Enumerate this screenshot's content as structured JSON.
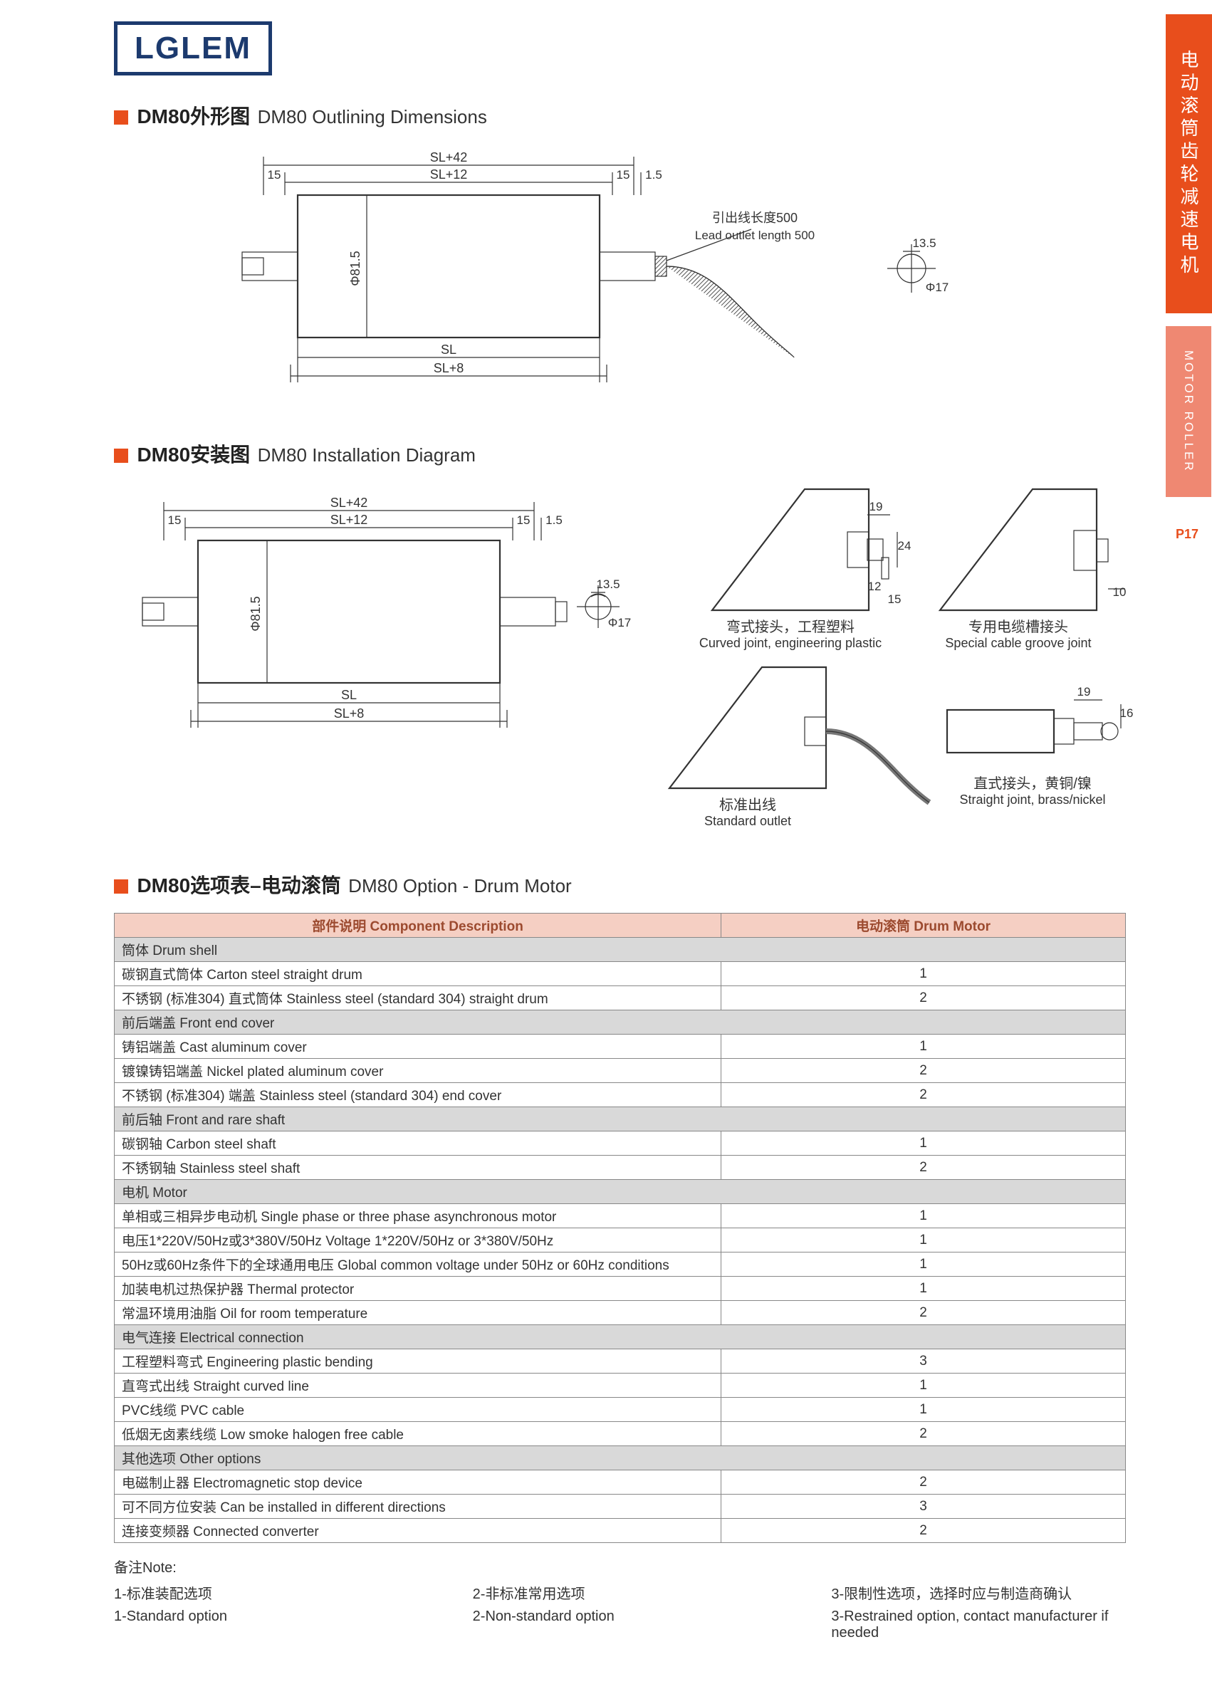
{
  "logo": "LGLEM",
  "side": {
    "tab1": "电动滚筒齿轮减速电机",
    "tab2": "MOTOR ROLLER",
    "page": "P17"
  },
  "sec1": {
    "zh": "DM80外形图",
    "en": "DM80 Outlining Dimensions",
    "dims": {
      "sl42": "SL+42",
      "sl12": "SL+12",
      "sl": "SL",
      "sl8": "SL+8",
      "d815": "Φ81.5",
      "l15a": "15",
      "l15b": "15",
      "l1_5": "1.5",
      "lead_zh": "引出线长度500",
      "lead_en": "Lead outlet length 500",
      "d17": "Φ17",
      "l13_5": "13.5"
    }
  },
  "sec2": {
    "zh": "DM80安装图",
    "en": "DM80 Installation Diagram",
    "dims": {
      "sl42": "SL+42",
      "sl12": "SL+12",
      "sl": "SL",
      "sl8": "SL+8",
      "d815": "Φ81.5",
      "l15a": "15",
      "l15b": "15",
      "l1_5": "1.5",
      "d17": "Φ17",
      "l13_5": "13.5",
      "j1_19": "19",
      "j1_24": "24",
      "j1_12": "12",
      "j1_15": "15",
      "j2_10": "10",
      "j4_19": "19",
      "j4_16": "16"
    },
    "captions": {
      "c1_zh": "弯式接头，工程塑料",
      "c1_en": "Curved joint, engineering plastic",
      "c2_zh": "专用电缆槽接头",
      "c2_en": "Special cable groove joint",
      "c3_zh": "标准出线",
      "c3_en": "Standard outlet",
      "c4_zh": "直式接头，黄铜/镍",
      "c4_en": "Straight joint, brass/nickel"
    }
  },
  "sec3": {
    "zh": "DM80选项表–电动滚筒",
    "en": "DM80 Option - Drum Motor",
    "header": {
      "col1": "部件说明 Component Description",
      "col2": "电动滚筒 Drum Motor"
    },
    "groups": [
      {
        "section": "筒体 Drum shell",
        "rows": [
          {
            "d": "碳钢直式筒体 Carton steel straight drum",
            "v": "1"
          },
          {
            "d": "不锈钢 (标准304) 直式筒体 Stainless steel (standard 304) straight drum",
            "v": "2"
          }
        ]
      },
      {
        "section": "前后端盖 Front end cover",
        "rows": [
          {
            "d": "铸铝端盖 Cast aluminum cover",
            "v": "1"
          },
          {
            "d": "镀镍铸铝端盖 Nickel plated aluminum cover",
            "v": "2"
          },
          {
            "d": "不锈钢 (标准304) 端盖 Stainless steel (standard 304) end cover",
            "v": "2"
          }
        ]
      },
      {
        "section": "前后轴 Front and rare shaft",
        "rows": [
          {
            "d": "碳钢轴 Carbon steel shaft",
            "v": "1"
          },
          {
            "d": "不锈钢轴 Stainless steel shaft",
            "v": "2"
          }
        ]
      },
      {
        "section": "电机 Motor",
        "rows": [
          {
            "d": "单相或三相异步电动机 Single phase or three phase asynchronous motor",
            "v": "1"
          },
          {
            "d": "电压1*220V/50Hz或3*380V/50Hz  Voltage 1*220V/50Hz or 3*380V/50Hz",
            "v": "1"
          },
          {
            "d": "50Hz或60Hz条件下的全球通用电压 Global common voltage under 50Hz or 60Hz conditions",
            "v": "1"
          },
          {
            "d": "加装电机过热保护器 Thermal protector",
            "v": "1"
          },
          {
            "d": "常温环境用油脂 Oil for room temperature",
            "v": "2"
          }
        ]
      },
      {
        "section": "电气连接 Electrical connection",
        "rows": [
          {
            "d": "工程塑料弯式 Engineering plastic bending",
            "v": "3"
          },
          {
            "d": "直弯式出线 Straight curved line",
            "v": "1"
          },
          {
            "d": "PVC线缆 PVC cable",
            "v": "1"
          },
          {
            "d": "低烟无卤素线缆 Low smoke halogen free cable",
            "v": "2"
          }
        ]
      },
      {
        "section": "其他选项 Other options",
        "rows": [
          {
            "d": "电磁制止器 Electromagnetic stop device",
            "v": "2"
          },
          {
            "d": "可不同方位安装 Can be installed in different directions",
            "v": "3"
          },
          {
            "d": "连接变频器 Connected converter",
            "v": "2"
          }
        ]
      }
    ],
    "notes": {
      "title": "备注Note:",
      "r1": {
        "a": "1-标准装配选项",
        "b": "2-非标准常用选项",
        "c": "3-限制性选项，选择时应与制造商确认"
      },
      "r2": {
        "a": "1-Standard option",
        "b": "2-Non-standard option",
        "c": "3-Restrained option, contact manufacturer if needed"
      }
    }
  }
}
